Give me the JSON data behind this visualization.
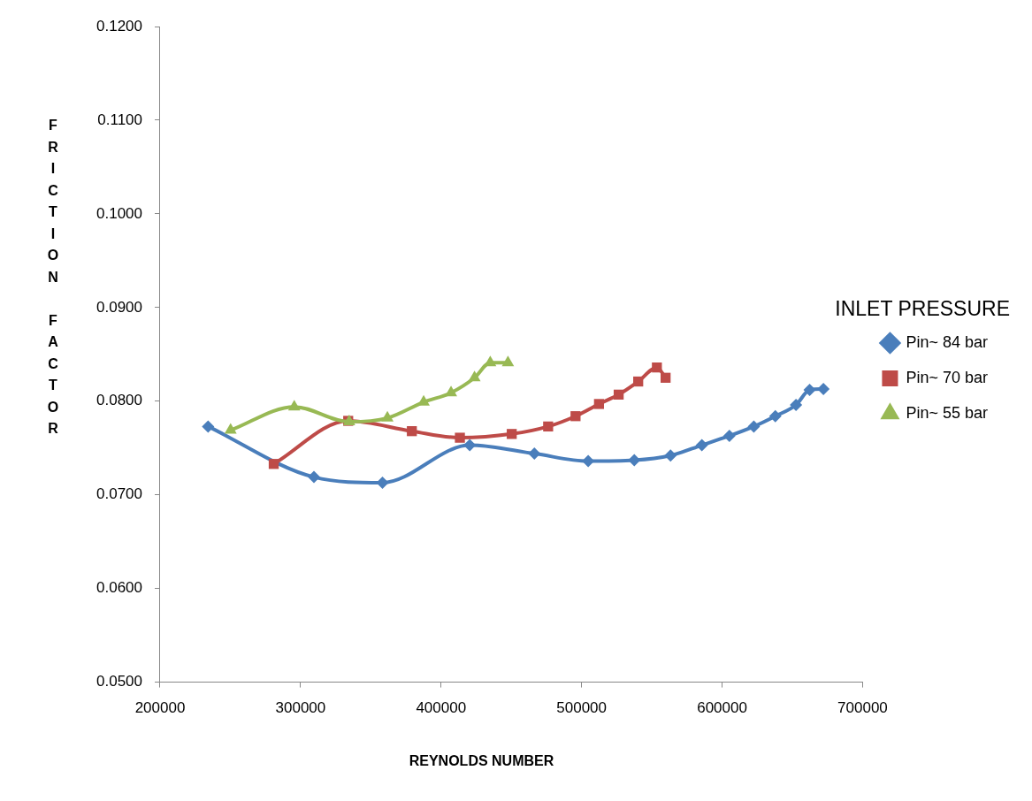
{
  "chart_data": {
    "type": "line",
    "xlabel": "REYNOLDS NUMBER",
    "ylabel": "FRICTION FACTOR",
    "legend_title": "INLET PRESSURE",
    "legend": "right",
    "grid": false,
    "xlim": [
      200000,
      700000
    ],
    "xticks": [
      200000,
      300000,
      400000,
      500000,
      600000,
      700000
    ],
    "ylim": [
      0.05,
      0.12
    ],
    "yticks": [
      {
        "value": 0.05,
        "label": "0.0500"
      },
      {
        "value": 0.06,
        "label": "0.0600"
      },
      {
        "value": 0.07,
        "label": "0.0700"
      },
      {
        "value": 0.08,
        "label": "0.0800"
      },
      {
        "value": 0.09,
        "label": "0.0900"
      },
      {
        "value": 0.1,
        "label": "0.1000"
      },
      {
        "value": 0.11,
        "label": "0.1100"
      },
      {
        "value": 0.12,
        "label": "0.1200"
      }
    ],
    "series": [
      {
        "name": "Pin~ 84 bar",
        "color": "#4a7ebb",
        "marker": "diamond",
        "x": [
          234200,
          309500,
          358300,
          420400,
          466400,
          504700,
          537500,
          563300,
          585600,
          605200,
          622600,
          637900,
          652600,
          662300,
          672100
        ],
        "values": [
          0.0773,
          0.0719,
          0.0713,
          0.0753,
          0.0744,
          0.0736,
          0.0737,
          0.0742,
          0.0753,
          0.0763,
          0.0773,
          0.0784,
          0.0796,
          0.0812,
          0.0813
        ]
      },
      {
        "name": "Pin~ 70 bar",
        "color": "#be4b48",
        "marker": "square",
        "x": [
          280900,
          333900,
          379200,
          413400,
          450300,
          476200,
          495700,
          512400,
          526400,
          540300,
          553600,
          559800
        ],
        "values": [
          0.0733,
          0.0779,
          0.0768,
          0.0761,
          0.0765,
          0.0773,
          0.0784,
          0.0797,
          0.0807,
          0.0821,
          0.0836,
          0.0825
        ]
      },
      {
        "name": "Pin~ 55 bar",
        "color": "#98b954",
        "marker": "triangle",
        "x": [
          250200,
          295500,
          334600,
          361800,
          387600,
          407100,
          423800,
          435000,
          447600
        ],
        "values": [
          0.0769,
          0.0794,
          0.0778,
          0.0782,
          0.0799,
          0.0809,
          0.0825,
          0.0841,
          0.0841
        ]
      }
    ]
  }
}
